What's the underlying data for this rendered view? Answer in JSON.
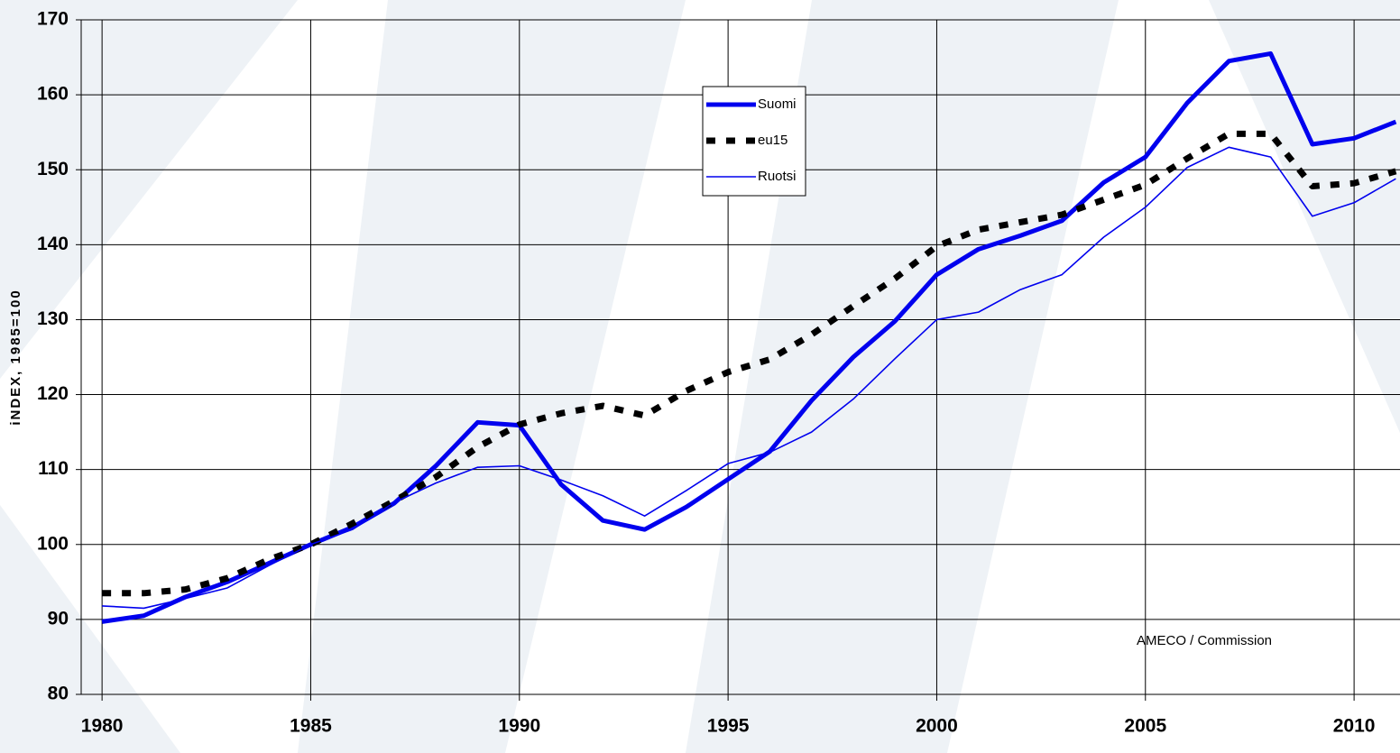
{
  "chart_data": {
    "type": "line",
    "ylabel": "iNDEX, 1985=100",
    "annotation": "AMECO / Commission",
    "x": [
      1980,
      1981,
      1982,
      1983,
      1984,
      1985,
      1986,
      1987,
      1988,
      1989,
      1990,
      1991,
      1992,
      1993,
      1994,
      1995,
      1996,
      1997,
      1998,
      1999,
      2000,
      2001,
      2002,
      2003,
      2004,
      2005,
      2006,
      2007,
      2008,
      2009,
      2010,
      2011
    ],
    "series": [
      {
        "name": "Suomi",
        "color": "#0000ee",
        "style": "thick",
        "values": [
          89.7,
          90.5,
          93,
          95,
          97.5,
          100,
          102.3,
          105.5,
          110.5,
          116.3,
          115.9,
          108,
          103.2,
          102,
          105,
          108.7,
          112.4,
          119.2,
          125,
          129.8,
          136,
          139.4,
          141.2,
          143.2,
          148.3,
          151.7,
          158.9,
          164.5,
          165.5,
          153.4,
          154.2,
          156.4
        ]
      },
      {
        "name": "eu15",
        "color": "#000000",
        "style": "dashed",
        "values": [
          93.5,
          93.5,
          94,
          95.5,
          98,
          100,
          102.8,
          105.8,
          109,
          113,
          116,
          117.5,
          118.5,
          117.2,
          120.5,
          123,
          124.7,
          128,
          131.8,
          135.5,
          139.8,
          142,
          143,
          144,
          146,
          148,
          151.5,
          154.8,
          154.8,
          147.8,
          148.2,
          149.8
        ]
      },
      {
        "name": "Ruotsi",
        "color": "#0000ee",
        "style": "thin",
        "values": [
          91.8,
          91.5,
          92.8,
          94.2,
          97.2,
          100,
          102,
          105.6,
          108.2,
          110.3,
          110.5,
          108.6,
          106.5,
          103.8,
          107.2,
          110.8,
          112.3,
          115,
          119.4,
          124.8,
          130,
          131,
          134,
          136,
          141,
          145,
          150.3,
          153,
          151.7,
          143.8,
          145.6,
          148.8
        ]
      }
    ],
    "xlim": [
      1979.5,
      2011.1
    ],
    "xticks": [
      1980,
      1985,
      1990,
      1995,
      2000,
      2005,
      2010
    ],
    "ylim": [
      80,
      170
    ],
    "yticks": [
      80,
      90,
      100,
      110,
      120,
      130,
      140,
      150,
      160,
      170
    ],
    "grid": true
  }
}
